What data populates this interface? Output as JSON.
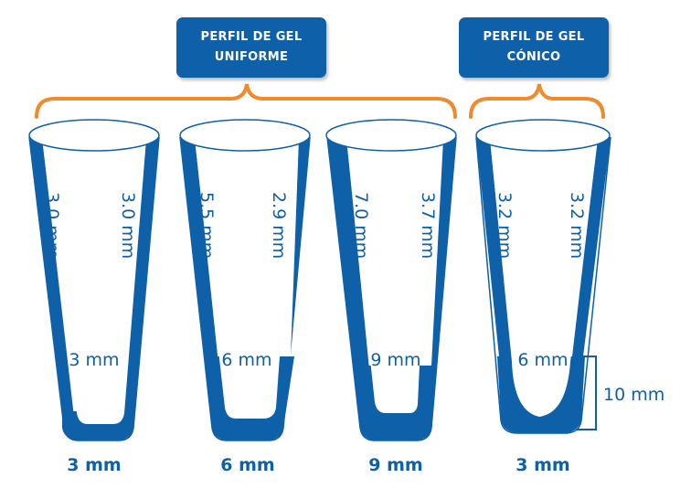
{
  "labels": {
    "uniform_line1": "PERFIL DE GEL",
    "uniform_line2": "UNIFORME",
    "conic_line1": "PERFIL DE GEL",
    "conic_line2": "CÓNICO",
    "height_marker": "10 mm"
  },
  "tubes": [
    {
      "left_wall": "3.0 mm",
      "right_wall": "3.0 mm",
      "bottom_label": "3 mm",
      "base_label": "3 mm"
    },
    {
      "left_wall": "5.5 mm",
      "right_wall": "2.9 mm",
      "bottom_label": "6 mm",
      "base_label": "6 mm"
    },
    {
      "left_wall": "7.0 mm",
      "right_wall": "3.7 mm",
      "bottom_label": "9 mm",
      "base_label": "9 mm"
    },
    {
      "left_wall": "3.2 mm",
      "right_wall": "3.2 mm",
      "bottom_label": "6 mm",
      "base_label": "3 mm"
    }
  ],
  "colors": {
    "gel_blue": "#0e60a8",
    "bracket_orange": "#f08a2c",
    "tube_outline": "#0e60a8"
  }
}
